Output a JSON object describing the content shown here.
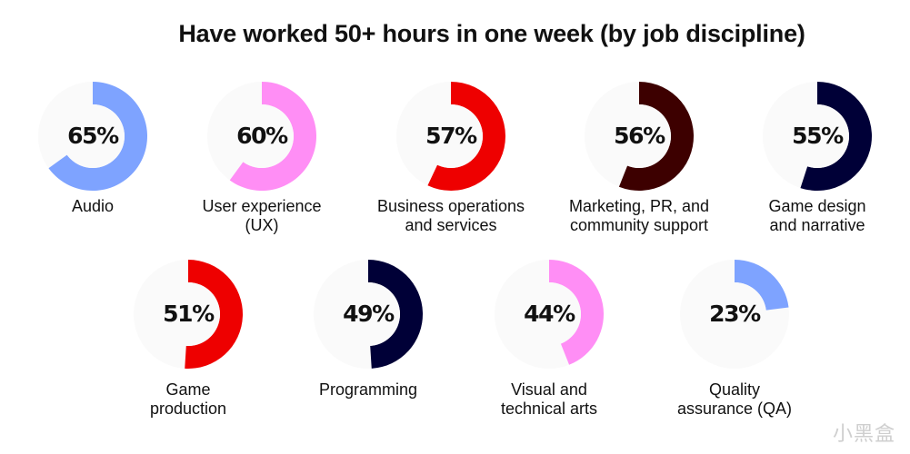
{
  "chart_data": {
    "type": "donut",
    "title": "Have worked 50+ hours in one week (by job discipline)",
    "unit": "%",
    "items": [
      {
        "label_lines": [
          "Audio"
        ],
        "value": 65,
        "display": "65%",
        "color": "#7ea3ff"
      },
      {
        "label_lines": [
          "User experience",
          "(UX)"
        ],
        "value": 60,
        "display": "60%",
        "color": "#ff8ef5"
      },
      {
        "label_lines": [
          "Business operations",
          "and services"
        ],
        "value": 57,
        "display": "57%",
        "color": "#ee0000"
      },
      {
        "label_lines": [
          "Marketing, PR, and",
          "community support"
        ],
        "value": 56,
        "display": "56%",
        "color": "#3d0000"
      },
      {
        "label_lines": [
          "Game design",
          "and narrative"
        ],
        "value": 55,
        "display": "55%",
        "color": "#000037"
      },
      {
        "label_lines": [
          "Game",
          "production"
        ],
        "value": 51,
        "display": "51%",
        "color": "#ee0000"
      },
      {
        "label_lines": [
          "Programming"
        ],
        "value": 49,
        "display": "49%",
        "color": "#000037"
      },
      {
        "label_lines": [
          "Visual and",
          "technical arts"
        ],
        "value": 44,
        "display": "44%",
        "color": "#ff8ef5"
      },
      {
        "label_lines": [
          "Quality",
          "assurance (QA)"
        ],
        "value": 23,
        "display": "23%",
        "color": "#7ea3ff"
      }
    ],
    "track_color": "#fafafa"
  },
  "watermark": "小黑盒"
}
